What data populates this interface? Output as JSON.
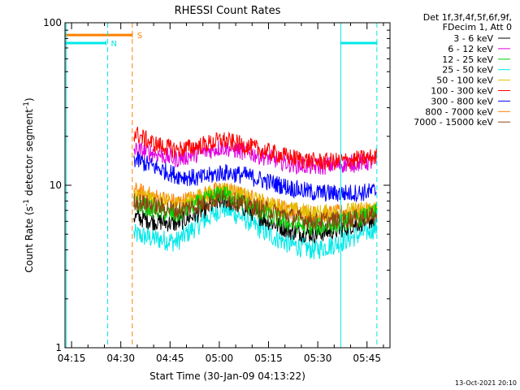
{
  "chart_data": {
    "type": "line",
    "title": "RHESSI Count Rates",
    "xlabel": "Start Time (30-Jan-09 04:13:22)",
    "ylabel_parts": {
      "main": "Count Rate (s",
      "sup1": "-1",
      "mid": " detector segment",
      "sup2": "-1",
      "end": ")"
    },
    "yscale": "log",
    "ylim": [
      1,
      100
    ],
    "xlim": [
      "04:13:00",
      "05:52:00"
    ],
    "x_ticks": [
      "04:15",
      "04:30",
      "04:45",
      "05:00",
      "05:15",
      "05:30",
      "05:45"
    ],
    "y_ticks": [
      "1",
      "10",
      "100"
    ],
    "legend_header": [
      "Det 1f,3f,4f,5f,6f,9f,",
      "FDecim 1, Att 0"
    ],
    "legend_position": "right",
    "data_start": "04:34:00",
    "data_end": "05:48:00",
    "series": [
      {
        "name": "3 - 6 keV",
        "color": "#000000",
        "x": [
          "04:34",
          "04:40",
          "04:47",
          "04:54",
          "05:01",
          "05:08",
          "05:15",
          "05:22",
          "05:29",
          "05:36",
          "05:43",
          "05:48"
        ],
        "y": [
          6.4,
          6.0,
          5.8,
          6.8,
          8.2,
          7.2,
          6.0,
          5.2,
          5.0,
          5.3,
          5.9,
          6.2
        ]
      },
      {
        "name": "6 - 12 keV",
        "color": "#e000e0",
        "x": [
          "04:34",
          "04:40",
          "04:47",
          "04:54",
          "05:01",
          "05:08",
          "05:15",
          "05:22",
          "05:29",
          "05:36",
          "05:43",
          "05:48"
        ],
        "y": [
          16.5,
          15.8,
          14.5,
          15.8,
          17.2,
          16.0,
          14.8,
          13.5,
          13.0,
          13.4,
          13.8,
          14.0
        ]
      },
      {
        "name": "12 - 25 keV",
        "color": "#00d000",
        "x": [
          "04:34",
          "04:40",
          "04:47",
          "04:54",
          "05:01",
          "05:08",
          "05:15",
          "05:22",
          "05:29",
          "05:36",
          "05:43",
          "05:48"
        ],
        "y": [
          7.8,
          7.1,
          6.5,
          7.8,
          9.0,
          7.6,
          6.5,
          5.8,
          5.5,
          5.8,
          6.3,
          6.8
        ]
      },
      {
        "name": "25 - 50 keV",
        "color": "#00e8e8",
        "x": [
          "04:34",
          "04:40",
          "04:47",
          "04:54",
          "05:01",
          "05:08",
          "05:15",
          "05:22",
          "05:29",
          "05:36",
          "05:43",
          "05:48"
        ],
        "y": [
          5.0,
          4.7,
          4.5,
          5.8,
          7.3,
          6.2,
          5.0,
          4.3,
          4.0,
          4.4,
          5.0,
          5.5
        ]
      },
      {
        "name": "50 - 100 keV",
        "color": "#e0c000",
        "x": [
          "04:34",
          "04:40",
          "04:47",
          "04:54",
          "05:01",
          "05:08",
          "05:15",
          "05:22",
          "05:29",
          "05:36",
          "05:43",
          "05:48"
        ],
        "y": [
          8.8,
          8.1,
          7.6,
          8.4,
          9.4,
          8.4,
          7.6,
          7.0,
          6.7,
          6.8,
          7.0,
          7.2
        ]
      },
      {
        "name": "100 - 300 keV",
        "color": "#ff0000",
        "x": [
          "04:34",
          "04:40",
          "04:47",
          "04:54",
          "05:01",
          "05:08",
          "05:15",
          "05:22",
          "05:29",
          "05:36",
          "05:43",
          "05:48"
        ],
        "y": [
          21.0,
          18.0,
          16.5,
          17.5,
          19.0,
          17.5,
          16.0,
          14.8,
          14.0,
          14.0,
          14.5,
          15.0
        ]
      },
      {
        "name": "300 - 800 keV",
        "color": "#0000ff",
        "x": [
          "04:34",
          "04:40",
          "04:47",
          "04:54",
          "05:01",
          "05:08",
          "05:15",
          "05:22",
          "05:29",
          "05:36",
          "05:43",
          "05:48"
        ],
        "y": [
          14.5,
          13.0,
          11.5,
          11.0,
          12.0,
          11.5,
          10.5,
          9.6,
          9.0,
          8.9,
          9.0,
          9.2
        ]
      },
      {
        "name": "800 - 7000 keV",
        "color": "#ff8000",
        "x": [
          "04:34",
          "04:40",
          "04:47",
          "04:54",
          "05:01",
          "05:08",
          "05:15",
          "05:22",
          "05:29",
          "05:36",
          "05:43",
          "05:48"
        ],
        "y": [
          9.3,
          8.5,
          7.8,
          8.5,
          9.5,
          8.5,
          7.6,
          7.0,
          6.6,
          6.7,
          6.9,
          7.0
        ]
      },
      {
        "name": "7000 - 15000 keV",
        "color": "#8b4513",
        "x": [
          "04:34",
          "04:40",
          "04:47",
          "04:54",
          "05:01",
          "05:08",
          "05:15",
          "05:22",
          "05:29",
          "05:36",
          "05:43",
          "05:48"
        ],
        "y": [
          8.0,
          7.5,
          7.0,
          7.6,
          8.4,
          7.6,
          7.0,
          6.4,
          6.0,
          6.1,
          6.3,
          6.5
        ]
      }
    ],
    "annotations": [
      {
        "kind": "bar",
        "label": "S",
        "color": "#ff8000",
        "x_start": "04:13:00",
        "x_end": "04:33:30",
        "y": 84,
        "dash": false
      },
      {
        "kind": "bar",
        "label": "N",
        "color": "#00e8e8",
        "x_start": "04:13:00",
        "x_end": "04:25:30",
        "y": 75,
        "dash": false
      },
      {
        "kind": "bar",
        "label": "",
        "color": "#00e8e8",
        "x_start": "05:37:00",
        "x_end": "05:48:00",
        "y": 75,
        "dash": false
      },
      {
        "kind": "vline",
        "color": "#00e8e8",
        "x": "04:13:20",
        "dash": false
      },
      {
        "kind": "vline",
        "color": "#00e8e8",
        "x": "04:26:00",
        "dash": true
      },
      {
        "kind": "vline",
        "color": "#ff8000",
        "x": "04:33:30",
        "dash": true
      },
      {
        "kind": "vline",
        "color": "#00e8e8",
        "x": "05:37:00",
        "dash": false
      },
      {
        "kind": "vline",
        "color": "#00e8e8",
        "x": "05:48:00",
        "dash": true
      }
    ],
    "grid": false
  },
  "footer": {
    "timestamp": "13-Oct-2021 20:10"
  }
}
